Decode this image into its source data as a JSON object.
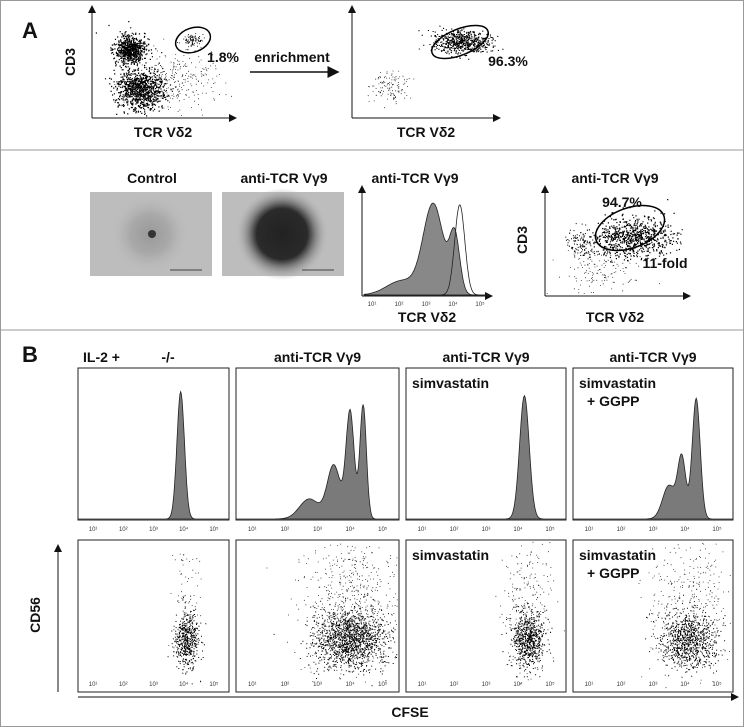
{
  "panel_a": {
    "label": "A",
    "row1": {
      "plot1": {
        "y_label": "CD3",
        "x_label": "TCR Vδ2",
        "gate_percent": "1.8%"
      },
      "arrow_label": "enrichment",
      "plot2": {
        "x_label": "TCR Vδ2",
        "gate_percent": "96.3%"
      }
    },
    "row2": {
      "images": [
        {
          "title": "Control"
        },
        {
          "title": "anti-TCR Vγ9"
        }
      ],
      "histogram": {
        "title": "anti-TCR Vγ9",
        "x_label": "TCR Vδ2"
      },
      "dot_plot": {
        "title": "anti-TCR Vγ9",
        "y_label": "CD3",
        "x_label": "TCR Vδ2",
        "gate_percent": "94.7%",
        "fold": "11-fold"
      }
    }
  },
  "panel_b": {
    "label": "B",
    "columns": [
      {
        "title": "IL-2 +",
        "treatment": "-/-"
      },
      {
        "title": "anti-TCR Vγ9"
      },
      {
        "title": "anti-TCR Vγ9",
        "treatment": "simvastatin"
      },
      {
        "title": "anti-TCR Vγ9",
        "treatment": "simvastatin",
        "treatment_extra": "+ GGPP"
      }
    ],
    "y_label": "CD56",
    "x_label": "CFSE",
    "x_ticks": [
      "10¹",
      "10²",
      "10³",
      "10⁴",
      "10⁵"
    ]
  }
}
